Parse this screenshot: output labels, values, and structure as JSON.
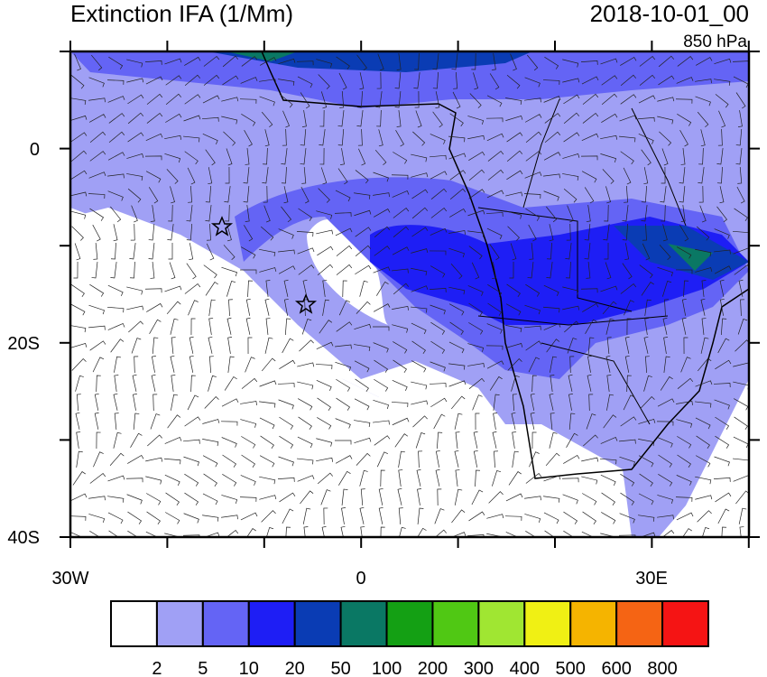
{
  "header": {
    "title": "Extinction IFA (1/Mm)",
    "date": "2018-10-01_00",
    "level": "850 hPa"
  },
  "map": {
    "lat_labels": [
      "0",
      "20S",
      "40S"
    ],
    "lon_labels": [
      "30W",
      "0",
      "30E"
    ]
  },
  "colorbar": {
    "labels": [
      "2",
      "5",
      "10",
      "20",
      "50",
      "100",
      "200",
      "300",
      "400",
      "500",
      "600",
      "800"
    ],
    "colors": [
      "#ffffff",
      "#a0a0f5",
      "#6464f5",
      "#1e1ef5",
      "#0a3cb4",
      "#0a7864",
      "#14a014",
      "#50c814",
      "#a0e632",
      "#f0f014",
      "#f5b400",
      "#f56414",
      "#f51414"
    ]
  }
}
